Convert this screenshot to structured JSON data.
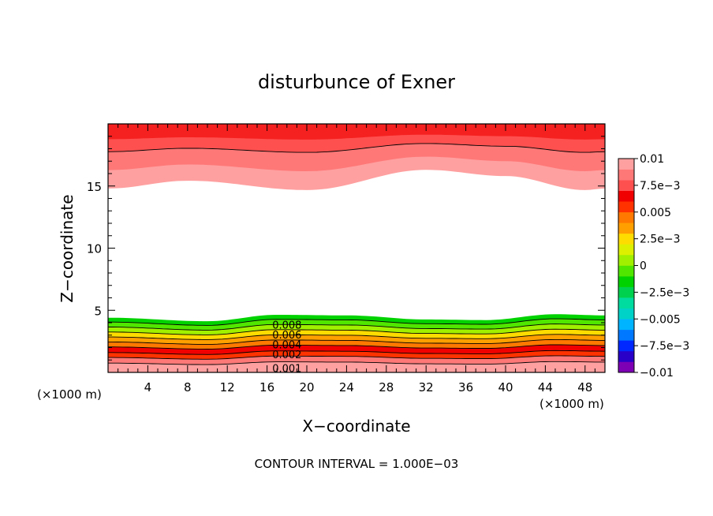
{
  "chart_data": {
    "type": "contour",
    "title": "disturbunce of Exner",
    "xlabel": "X−coordinate",
    "ylabel": "Z−coordinate",
    "x_unit": "(×1000 m)",
    "x_unit_right": "(×1000 m)",
    "xlim": [
      0,
      50
    ],
    "ylim": [
      0,
      20
    ],
    "x_ticks": [
      4,
      8,
      12,
      16,
      20,
      24,
      28,
      32,
      36,
      40,
      44,
      48
    ],
    "y_ticks": [
      5,
      10,
      15
    ],
    "footer": "CONTOUR INTERVAL = 1.000E−03",
    "contour_labels": [
      "0.008",
      "0.006",
      "0.004",
      "0.002",
      "0.001"
    ],
    "colorbar": {
      "labels": [
        "0.01",
        "7.5e−3",
        "0.005",
        "2.5e−3",
        "0",
        "−2.5e−3",
        "−0.005",
        "−7.5e−3",
        "−0.01"
      ],
      "colors": [
        "#7d00b4",
        "#2800c8",
        "#0028ff",
        "#0078ff",
        "#00b4ff",
        "#00d2c8",
        "#00dca0",
        "#00d250",
        "#00d200",
        "#50e600",
        "#a0f000",
        "#dcf000",
        "#ffdc00",
        "#ffa000",
        "#ff7800",
        "#ff3200",
        "#f00000",
        "#ff5050",
        "#ff7878",
        "#ffa0a0"
      ],
      "min": -0.01,
      "max": 0.01
    },
    "bottom_layer": {
      "levels": [
        0.0095,
        0.0085,
        0.0075,
        0.0065,
        0.0055,
        0.0045,
        0.0035,
        0.0025,
        0.0015,
        0.0005
      ],
      "colors": [
        "#ffa0a0",
        "#ff7878",
        "#ff3200",
        "#f00000",
        "#ff7800",
        "#ffa000",
        "#ffdc00",
        "#a0f000",
        "#50e600",
        "#00d200"
      ],
      "base_z": [
        0.75,
        1.2,
        1.6,
        2.05,
        2.45,
        2.85,
        3.25,
        3.65,
        4.05,
        4.4
      ],
      "undulation": [
        [
          0,
          0.0
        ],
        [
          10,
          -0.3
        ],
        [
          17,
          0.25
        ],
        [
          24,
          0.2
        ],
        [
          32,
          -0.15
        ],
        [
          38,
          -0.2
        ],
        [
          45,
          0.3
        ],
        [
          50,
          0.2
        ]
      ]
    },
    "top_layer": {
      "colors": [
        "#ff5050",
        "#ff7878",
        "#ffa0a0"
      ],
      "boundary_z": [
        18.2,
        17.0,
        15.8
      ],
      "undulation": [
        [
          0,
          -0.8
        ],
        [
          8,
          -0.3
        ],
        [
          20,
          -0.9
        ],
        [
          32,
          0.4
        ],
        [
          40,
          0.0
        ],
        [
          48,
          -0.9
        ],
        [
          50,
          -0.8
        ]
      ]
    }
  }
}
